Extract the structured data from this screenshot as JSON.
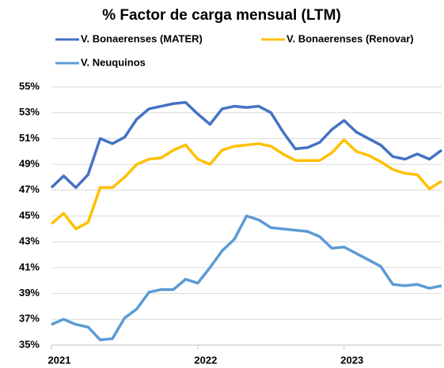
{
  "chart_data": {
    "type": "line",
    "title": "% Factor de carga mensual (LTM)",
    "categories": [
      "2021",
      null,
      null,
      null,
      null,
      null,
      null,
      null,
      null,
      null,
      null,
      null,
      "2022",
      null,
      null,
      null,
      null,
      null,
      null,
      null,
      null,
      null,
      null,
      null,
      "2023",
      null,
      null,
      null,
      null,
      null,
      null,
      null,
      null
    ],
    "series": [
      {
        "name": "V. Bonaerenses (MATER)",
        "color": "#4472c4",
        "values": [
          47.2,
          48.1,
          47.2,
          48.2,
          51.0,
          50.6,
          51.1,
          52.5,
          53.3,
          53.5,
          53.7,
          53.8,
          52.9,
          52.1,
          53.3,
          53.5,
          53.4,
          53.5,
          53.0,
          51.5,
          50.2,
          50.3,
          50.7,
          51.7,
          52.4,
          51.5,
          51.0,
          50.5,
          49.6,
          49.4,
          49.8,
          49.4,
          50.1
        ]
      },
      {
        "name": "V. Bonaerenses (Renovar)",
        "color": "#ffc000",
        "values": [
          44.4,
          45.2,
          44.0,
          44.5,
          47.2,
          47.2,
          48.0,
          49.0,
          49.4,
          49.5,
          50.1,
          50.5,
          49.4,
          49.0,
          50.1,
          50.4,
          50.5,
          50.6,
          50.4,
          49.8,
          49.3,
          49.3,
          49.3,
          49.9,
          50.9,
          50.0,
          49.7,
          49.2,
          48.6,
          48.3,
          48.2,
          47.1,
          47.7
        ]
      },
      {
        "name": "V. Neuquinos",
        "color": "#5b9bd5",
        "values": [
          36.6,
          37.0,
          36.6,
          36.4,
          35.4,
          35.5,
          37.1,
          37.8,
          39.1,
          39.3,
          39.3,
          40.1,
          39.8,
          41.0,
          42.3,
          43.2,
          45.0,
          44.7,
          44.1,
          44.0,
          43.9,
          43.8,
          43.4,
          42.5,
          42.6,
          42.1,
          41.6,
          41.1,
          39.7,
          39.6,
          39.7,
          39.4,
          39.6
        ]
      }
    ],
    "ylim": [
      35,
      55
    ],
    "yticks": [
      {
        "value": 35,
        "label": "35%"
      },
      {
        "value": 37,
        "label": "37%"
      },
      {
        "value": 39,
        "label": "39%"
      },
      {
        "value": 41,
        "label": "41%"
      },
      {
        "value": 43,
        "label": "43%"
      },
      {
        "value": 45,
        "label": "45%"
      },
      {
        "value": 47,
        "label": "47%"
      },
      {
        "value": 49,
        "label": "49%"
      },
      {
        "value": 51,
        "label": "51%"
      },
      {
        "value": 53,
        "label": "53%"
      },
      {
        "value": 55,
        "label": "55%"
      }
    ],
    "grid": true
  }
}
